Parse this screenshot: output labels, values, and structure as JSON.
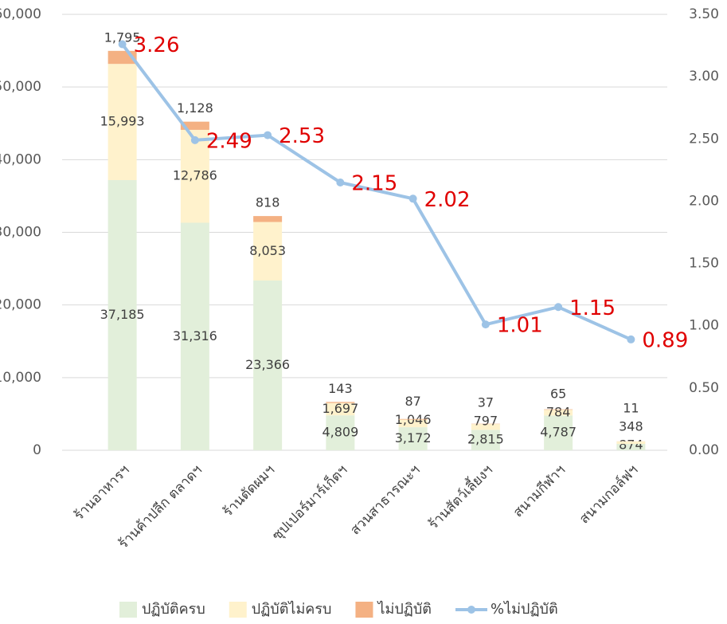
{
  "chart_data": {
    "type": "bar",
    "categories": [
      "ร้านอาหารฯ",
      "ร้านค้าปลีก ตลาดฯ",
      "ร้านตัดผมฯ",
      "ซุปเปอร์มาร์เก็ตฯ",
      "สวนสาธารณะฯ",
      "ร้านสัตว์เลี้ยงฯ",
      "สนามกีฬาฯ",
      "สนามกอล์ฟฯ"
    ],
    "series": [
      {
        "name": "ปฏิบัติครบ",
        "color": "#e2efda",
        "values": [
          37185,
          31316,
          23366,
          4809,
          3172,
          2815,
          4787,
          874
        ],
        "value_labels": [
          "37,185",
          "31,316",
          "23,366",
          "4,809",
          "3,172",
          "2,815",
          "4,787",
          "874"
        ]
      },
      {
        "name": "ปฏิบัติไม่ครบ",
        "color": "#fff2cc",
        "values": [
          15993,
          12786,
          8053,
          1697,
          1046,
          797,
          784,
          348
        ],
        "value_labels": [
          "15,993",
          "12,786",
          "8,053",
          "1,697",
          "1,046",
          "797",
          "784",
          "348"
        ]
      },
      {
        "name": "ไม่ปฏิบัติ",
        "color": "#f4b183",
        "values": [
          1795,
          1128,
          818,
          143,
          87,
          37,
          65,
          11
        ],
        "value_labels": [
          "1,795",
          "1,128",
          "818",
          "143",
          "87",
          "37",
          "65",
          "11"
        ]
      },
      {
        "name": "%ไม่ปฏิบัติ",
        "type": "line",
        "axis": "y2",
        "color": "#9dc3e6",
        "values": [
          3.26,
          2.49,
          2.53,
          2.15,
          2.02,
          1.01,
          1.15,
          0.89
        ]
      }
    ],
    "ylim": [
      0,
      60000
    ],
    "yticks": [
      0,
      {
        "value": 10000,
        "label": "10,000"
      },
      {
        "value": 20000,
        "label": "20,000"
      },
      {
        "value": 30000,
        "label": "30,000"
      },
      {
        "value": 40000,
        "label": "40,000"
      },
      {
        "value": 50000,
        "label": "50,000"
      },
      {
        "value": 60000,
        "label": "60,000"
      }
    ],
    "y2lim": [
      0,
      3.5
    ],
    "y2ticks": [
      {
        "value": 0,
        "label": "0.00"
      },
      {
        "value": 0.5,
        "label": "0.50"
      },
      {
        "value": 1,
        "label": "1.00"
      },
      {
        "value": 1.5,
        "label": "1.50"
      },
      {
        "value": 2,
        "label": "2.00"
      },
      {
        "value": 2.5,
        "label": "2.50"
      },
      {
        "value": 3,
        "label": "3.00"
      },
      {
        "value": 3.5,
        "label": "3.50"
      }
    ],
    "legend": "bottom"
  }
}
